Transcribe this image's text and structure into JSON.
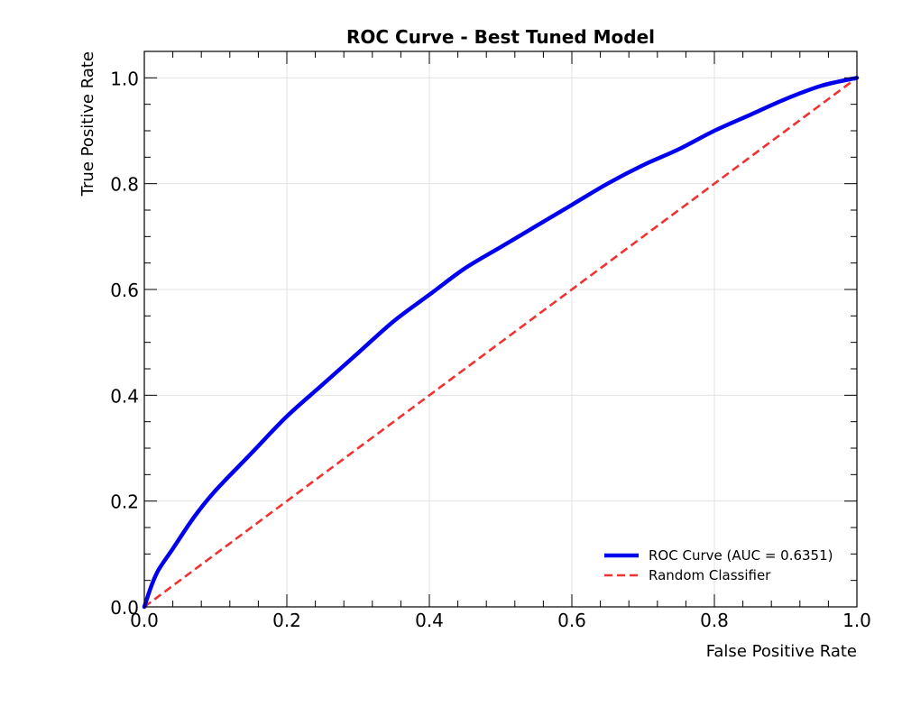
{
  "chart_data": {
    "type": "line",
    "title": "ROC Curve - Best Tuned Model",
    "xlabel": "False Positive Rate",
    "ylabel": "True Positive Rate",
    "xlim": [
      0.0,
      1.0
    ],
    "ylim": [
      0.0,
      1.05
    ],
    "xticks": [
      "0.0",
      "0.2",
      "0.4",
      "0.6",
      "0.8",
      "1.0"
    ],
    "yticks": [
      "0.0",
      "0.2",
      "0.4",
      "0.6",
      "0.8",
      "1.0"
    ],
    "grid": true,
    "legend_position": "lower-right",
    "series": [
      {
        "name": "ROC Curve (AUC = 0.6351)",
        "color": "#0000ee",
        "style": "solid",
        "x": [
          0.0,
          0.01,
          0.02,
          0.04,
          0.07,
          0.1,
          0.15,
          0.2,
          0.25,
          0.3,
          0.35,
          0.4,
          0.45,
          0.5,
          0.55,
          0.6,
          0.65,
          0.7,
          0.75,
          0.8,
          0.85,
          0.9,
          0.95,
          1.0
        ],
        "y": [
          0.0,
          0.04,
          0.07,
          0.11,
          0.17,
          0.22,
          0.29,
          0.36,
          0.42,
          0.48,
          0.54,
          0.59,
          0.64,
          0.68,
          0.72,
          0.76,
          0.8,
          0.835,
          0.865,
          0.9,
          0.93,
          0.96,
          0.985,
          1.0
        ]
      },
      {
        "name": "Random Classifier",
        "color": "#f03232",
        "style": "dashed",
        "x": [
          0.0,
          1.0
        ],
        "y": [
          0.0,
          1.0
        ]
      }
    ]
  }
}
